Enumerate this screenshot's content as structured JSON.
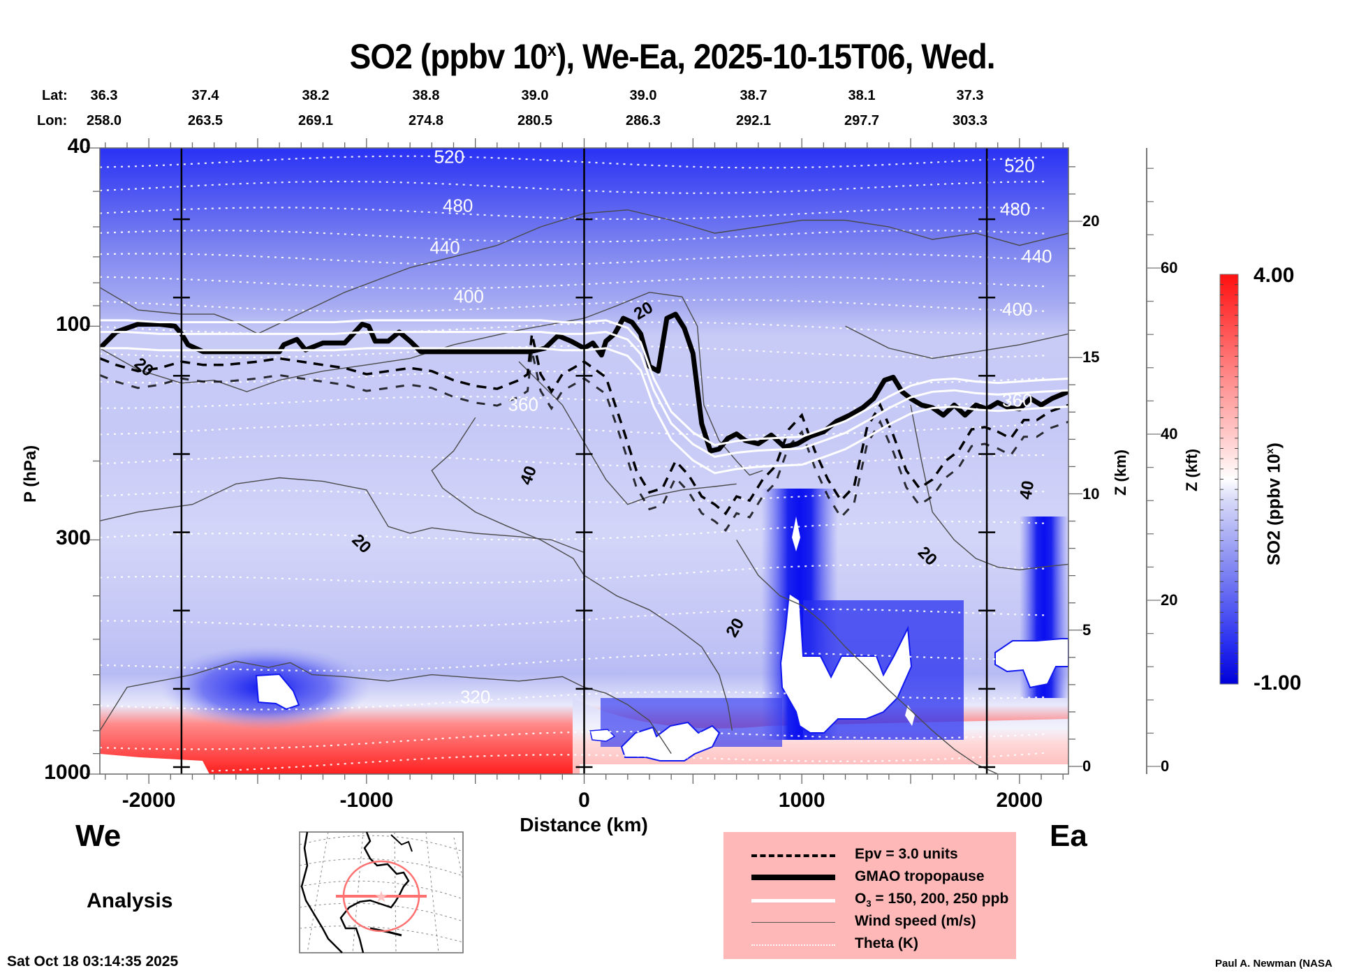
{
  "chart_data": {
    "type": "heatmap",
    "title": "SO2 (ppbv 10",
    "title_sup": "x",
    "title_rest": "), We-Ea, 2025-10-15T06, Wed.",
    "xlabel": "Distance (km)",
    "ylabel": "P (hPa)",
    "y2label": "Z (km)",
    "y3label": "Z (kft)",
    "xlim": [
      -2225,
      2225
    ],
    "ylim_hpa": [
      1000,
      40
    ],
    "x_ticks": [
      -2000,
      -1000,
      0,
      1000,
      2000
    ],
    "x_tick_labels": [
      "-2000",
      "-1000",
      "0",
      "1000",
      "2000"
    ],
    "y_ticks": [
      40,
      100,
      300,
      1000
    ],
    "y_tick_labels": [
      "40",
      "100",
      "300",
      "1000"
    ],
    "zkm_ticks": [
      0,
      5,
      10,
      15,
      20
    ],
    "zkft_ticks": [
      0,
      20,
      40,
      60
    ],
    "lat_label": "Lat:",
    "lon_label": "Lon:",
    "lat": [
      "36.3",
      "37.4",
      "38.2",
      "38.8",
      "39.0",
      "39.0",
      "38.7",
      "38.1",
      "37.3"
    ],
    "lon": [
      "258.0",
      "263.5",
      "269.1",
      "274.8",
      "280.5",
      "286.3",
      "292.1",
      "297.7",
      "303.3"
    ],
    "vertical_markers_km": [
      -1850,
      0,
      1850
    ],
    "colorbar": {
      "label": "SO2 (ppbv 10",
      "label_sup": "x",
      "label_end": ")",
      "min": -1.0,
      "max": 4.0,
      "min_label": "-1.00",
      "max_label": "4.00",
      "colors": [
        "#0000e0",
        "#ffffff",
        "#ff0000"
      ]
    },
    "theta_labels": [
      {
        "text": "520",
        "x": -620,
        "p": 42
      },
      {
        "text": "480",
        "x": -580,
        "p": 54
      },
      {
        "text": "440",
        "x": -640,
        "p": 67
      },
      {
        "text": "400",
        "x": -530,
        "p": 86
      },
      {
        "text": "360",
        "x": -280,
        "p": 150
      },
      {
        "text": "320",
        "x": -500,
        "p": 675
      },
      {
        "text": "520",
        "x": 2000,
        "p": 44
      },
      {
        "text": "480",
        "x": 1980,
        "p": 55
      },
      {
        "text": "440",
        "x": 2080,
        "p": 70
      },
      {
        "text": "400",
        "x": 1990,
        "p": 92
      },
      {
        "text": "360",
        "x": 1990,
        "p": 147
      }
    ],
    "wind_labels": [
      {
        "text": "20",
        "x": -2020,
        "p": 123,
        "rot": 40
      },
      {
        "text": "20",
        "x": 270,
        "p": 92,
        "rot": -30
      },
      {
        "text": "40",
        "x": -260,
        "p": 215,
        "rot": -70
      },
      {
        "text": "20",
        "x": -1020,
        "p": 305,
        "rot": 45
      },
      {
        "text": "20",
        "x": 690,
        "p": 470,
        "rot": -60
      },
      {
        "text": "20",
        "x": 1580,
        "p": 325,
        "rot": 45
      },
      {
        "text": "40",
        "x": 2030,
        "p": 232,
        "rot": -80
      }
    ],
    "series": [
      {
        "name": "GMAO tropopause",
        "style": "thick-black",
        "x": [
          -2225,
          -2150,
          -2050,
          -1950,
          -1880,
          -1850,
          -1820,
          -1750,
          -1650,
          -1500,
          -1400,
          -1380,
          -1320,
          -1280,
          -1200,
          -1100,
          -1020,
          -990,
          -960,
          -900,
          -850,
          -800,
          -750,
          -700,
          -600,
          -500,
          -400,
          -300,
          -250,
          -180,
          -120,
          -60,
          0,
          40,
          80,
          100,
          140,
          180,
          220,
          260,
          300,
          340,
          380,
          420,
          460,
          500,
          540,
          580,
          620,
          660,
          700,
          740,
          800,
          860,
          920,
          980,
          1040,
          1100,
          1160,
          1220,
          1280,
          1330,
          1380,
          1420,
          1460,
          1500,
          1550,
          1600,
          1650,
          1700,
          1750,
          1800,
          1850,
          1900,
          1950,
          2000,
          2050,
          2100,
          2150,
          2225
        ],
        "p": [
          112,
          103,
          99,
          99,
          100,
          104,
          110,
          114,
          114,
          114,
          114,
          110,
          107,
          113,
          109,
          109,
          99,
          100,
          108,
          108,
          103,
          108,
          114,
          114,
          114,
          114,
          114,
          114,
          114,
          112,
          105,
          108,
          112,
          109,
          116,
          108,
          104,
          96,
          98,
          104,
          123,
          126,
          96,
          94,
          101,
          115,
          165,
          190,
          188,
          178,
          174,
          180,
          183,
          175,
          186,
          183,
          176,
          172,
          163,
          158,
          152,
          145,
          132,
          130,
          140,
          145,
          150,
          152,
          158,
          150,
          158,
          150,
          153,
          148,
          152,
          153,
          145,
          150,
          145,
          140
        ],
        "color": "#000000"
      },
      {
        "name": "Epv = 3.0 units",
        "style": "dashed-black",
        "x": [
          -2225,
          -2150,
          -2050,
          -1950,
          -1850,
          -1750,
          -1650,
          -1500,
          -1400,
          -1300,
          -1200,
          -1100,
          -1000,
          -900,
          -800,
          -700,
          -600,
          -500,
          -400,
          -300,
          -260,
          -240,
          -200,
          -150,
          -100,
          -50,
          0,
          100,
          180,
          240,
          300,
          360,
          420,
          480,
          540,
          600,
          650,
          700,
          760,
          820,
          880,
          940,
          1000,
          1060,
          1120,
          1180,
          1240,
          1300,
          1360,
          1420,
          1480,
          1540,
          1600,
          1660,
          1720,
          1780,
          1840,
          1900,
          1960,
          2020,
          2080,
          2140,
          2225
        ],
        "p": [
          118,
          122,
          126,
          124,
          120,
          122,
          122,
          120,
          118,
          120,
          122,
          124,
          128,
          126,
          124,
          126,
          132,
          136,
          138,
          132,
          128,
          104,
          128,
          140,
          128,
          124,
          120,
          130,
          170,
          210,
          235,
          230,
          200,
          215,
          240,
          250,
          262,
          240,
          245,
          220,
          205,
          170,
          158,
          190,
          220,
          245,
          228,
          168,
          150,
          175,
          210,
          230,
          220,
          200,
          190,
          170,
          168,
          172,
          178,
          162,
          162,
          155,
          150
        ],
        "color": "#000000"
      },
      {
        "name": "O3 = 150, 200, 250 ppb",
        "style": "white",
        "x": [
          -2225,
          -2100,
          -1950,
          -1850,
          -1700,
          -1500,
          -1400,
          -1300,
          -1150,
          -1000,
          -850,
          -700,
          -550,
          -400,
          -300,
          -200,
          -100,
          0,
          100,
          200,
          260,
          320,
          400,
          500,
          600,
          700,
          800,
          900,
          1000,
          1100,
          1200,
          1300,
          1400,
          1500,
          1600,
          1700,
          1800,
          1900,
          2000,
          2100,
          2225
        ],
        "p": [
          100,
          100,
          101,
          101,
          101,
          101,
          101,
          101,
          101,
          100,
          100,
          100,
          100,
          100,
          100,
          100,
          101,
          101,
          100,
          104,
          112,
          135,
          160,
          178,
          190,
          186,
          184,
          183,
          182,
          175,
          168,
          158,
          148,
          140,
          136,
          135,
          137,
          138,
          137,
          136,
          135
        ],
        "color": "#ffffff"
      }
    ],
    "legend": {
      "items": [
        {
          "label": "Epv = 3.0 units",
          "style": "dashed"
        },
        {
          "label": "GMAO tropopause",
          "style": "thick"
        },
        {
          "label_main": "O",
          "label_sub": "3",
          "label_rest": " = 150, 200, 250 ppb",
          "style": "white"
        },
        {
          "label": "Wind speed (m/s)",
          "style": "thin"
        },
        {
          "label": "Theta (K)",
          "style": "dotted"
        }
      ]
    }
  },
  "labels": {
    "we": "We",
    "ea": "Ea",
    "analysis": "Analysis",
    "timestamp": "Sat Oct 18 03:14:35 2025",
    "author": "Paul A. Newman (NASA"
  }
}
